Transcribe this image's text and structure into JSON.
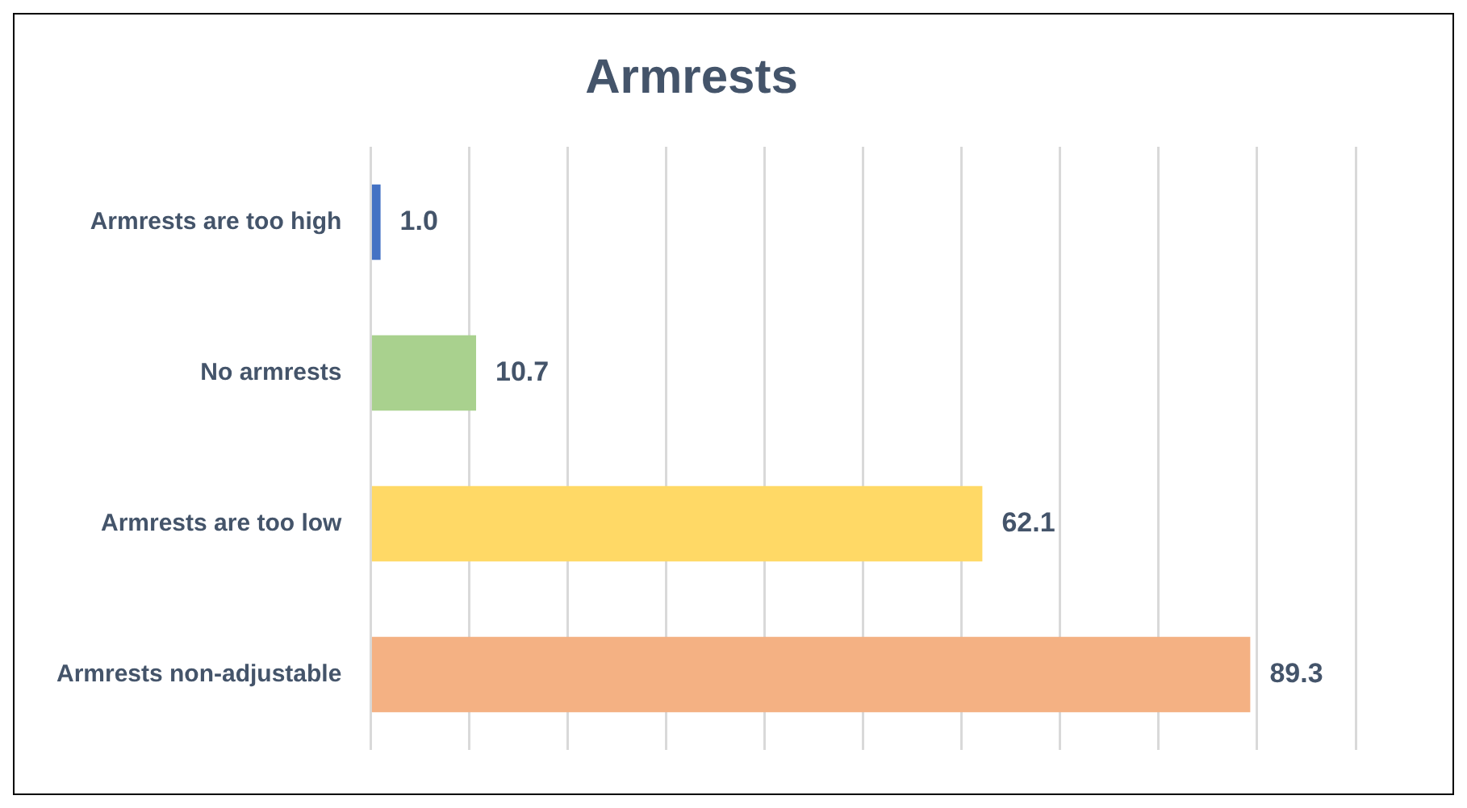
{
  "chart_data": {
    "type": "bar",
    "orientation": "horizontal",
    "title": "Armrests",
    "categories": [
      "Armrests are too high",
      "No armrests",
      "Armrests are too low",
      "Armrests non-adjustable"
    ],
    "values": [
      1.0,
      10.7,
      62.1,
      89.3
    ],
    "colors": [
      "#4472c4",
      "#a9d18e",
      "#ffd966",
      "#f4b183"
    ],
    "value_labels": [
      "1.0",
      "10.7",
      "62.1",
      "89.3"
    ],
    "xlim": [
      0,
      100
    ],
    "xticks": [
      {
        "value": 0,
        "label": null
      },
      {
        "value": 10,
        "label": null
      },
      {
        "value": 20,
        "label": null
      },
      {
        "value": 30,
        "label": null
      },
      {
        "value": 40,
        "label": null
      },
      {
        "value": 50,
        "label": null
      },
      {
        "value": 60,
        "label": null
      },
      {
        "value": 70,
        "label": null
      },
      {
        "value": 80,
        "label": null
      },
      {
        "value": 90,
        "label": null
      },
      {
        "value": 100,
        "label": null
      }
    ],
    "grid": "x",
    "tick_labels": "y",
    "legend": false
  }
}
